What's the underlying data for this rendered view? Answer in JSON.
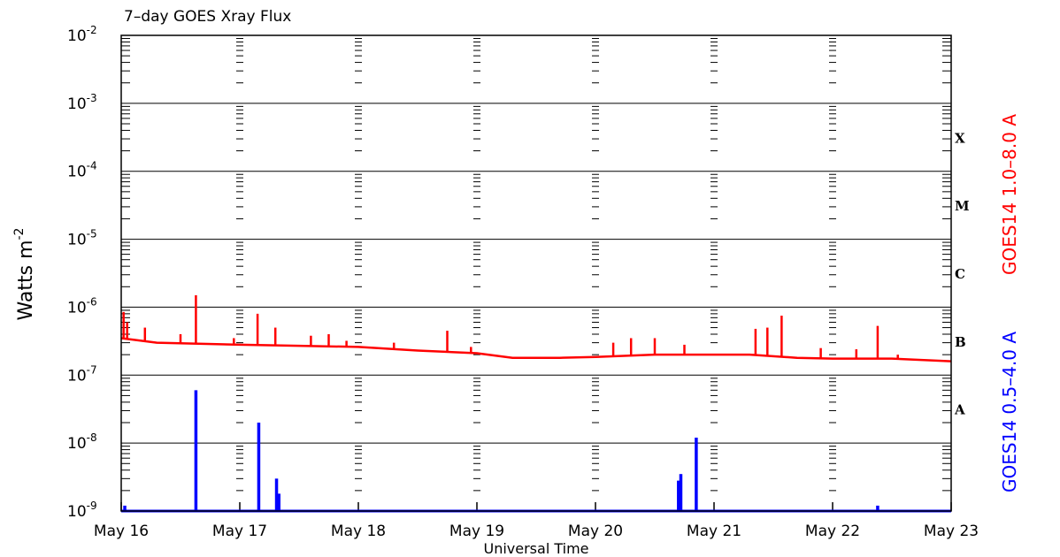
{
  "chart_data": {
    "type": "line",
    "title": "7–day GOES Xray Flux",
    "xlabel": "Universal Time",
    "ylabel": "Watts m",
    "ylabel_superscript": "-2",
    "yscale": "log",
    "ylim": [
      1e-09,
      0.01
    ],
    "y_ticks": [
      {
        "base": "10",
        "exp": "-9"
      },
      {
        "base": "10",
        "exp": "-8"
      },
      {
        "base": "10",
        "exp": "-7"
      },
      {
        "base": "10",
        "exp": "-6"
      },
      {
        "base": "10",
        "exp": "-5"
      },
      {
        "base": "10",
        "exp": "-4"
      },
      {
        "base": "10",
        "exp": "-3"
      },
      {
        "base": "10",
        "exp": "-2"
      }
    ],
    "x_ticks": [
      "May 16",
      "May 17",
      "May 18",
      "May 19",
      "May 20",
      "May 21",
      "May 22",
      "May 23"
    ],
    "xlim": [
      0,
      7
    ],
    "grid": true,
    "flare_classes": [
      {
        "label": "X",
        "level": 0.0001
      },
      {
        "label": "M",
        "level": 1e-05
      },
      {
        "label": "C",
        "level": 1e-06
      },
      {
        "label": "B",
        "level": 1e-07
      },
      {
        "label": "A",
        "level": 1e-08
      }
    ],
    "series": [
      {
        "name": "GOES14 1.0–8.0 A",
        "color": "#ff0000",
        "baseline": [
          [
            0.0,
            3.5e-07
          ],
          [
            0.3,
            3e-07
          ],
          [
            1.0,
            2.8e-07
          ],
          [
            1.5,
            2.7e-07
          ],
          [
            2.0,
            2.6e-07
          ],
          [
            2.5,
            2.3e-07
          ],
          [
            3.0,
            2.1e-07
          ],
          [
            3.3,
            1.8e-07
          ],
          [
            3.7,
            1.8e-07
          ],
          [
            4.0,
            1.85e-07
          ],
          [
            4.5,
            2e-07
          ],
          [
            5.0,
            2e-07
          ],
          [
            5.3,
            2e-07
          ],
          [
            5.7,
            1.8e-07
          ],
          [
            6.0,
            1.75e-07
          ],
          [
            6.5,
            1.75e-07
          ],
          [
            7.0,
            1.6e-07
          ]
        ],
        "peaks": [
          [
            0.02,
            8.5e-07
          ],
          [
            0.05,
            6e-07
          ],
          [
            0.2,
            5e-07
          ],
          [
            0.5,
            4e-07
          ],
          [
            0.63,
            1.5e-06
          ],
          [
            0.95,
            3.5e-07
          ],
          [
            1.15,
            8e-07
          ],
          [
            1.3,
            5e-07
          ],
          [
            1.6,
            3.8e-07
          ],
          [
            1.75,
            4e-07
          ],
          [
            1.9,
            3.2e-07
          ],
          [
            2.3,
            3e-07
          ],
          [
            2.75,
            4.5e-07
          ],
          [
            2.95,
            2.6e-07
          ],
          [
            4.15,
            3e-07
          ],
          [
            4.3,
            3.5e-07
          ],
          [
            4.5,
            3.5e-07
          ],
          [
            4.75,
            2.8e-07
          ],
          [
            5.35,
            4.8e-07
          ],
          [
            5.45,
            5e-07
          ],
          [
            5.57,
            7.5e-07
          ],
          [
            5.9,
            2.5e-07
          ],
          [
            6.2,
            2.4e-07
          ],
          [
            6.38,
            5.3e-07
          ],
          [
            6.55,
            2e-07
          ]
        ]
      },
      {
        "name": "GOES14 0.5–4.0 A",
        "color": "#0000ff",
        "baseline": [
          [
            0.0,
            1e-09
          ],
          [
            7.0,
            1e-09
          ]
        ],
        "peaks": [
          [
            0.03,
            1.2e-09
          ],
          [
            0.63,
            6e-08
          ],
          [
            1.16,
            2e-08
          ],
          [
            1.31,
            3e-09
          ],
          [
            1.33,
            1.8e-09
          ],
          [
            4.7,
            2.8e-09
          ],
          [
            4.72,
            3.5e-09
          ],
          [
            4.85,
            1.2e-08
          ],
          [
            6.38,
            1.2e-09
          ]
        ]
      }
    ],
    "right_labels": [
      {
        "text": "GOES14 1.0–8.0 A",
        "color": "#ff0000"
      },
      {
        "text": "GOES14 0.5–4.0 A",
        "color": "#0000ff"
      }
    ]
  }
}
